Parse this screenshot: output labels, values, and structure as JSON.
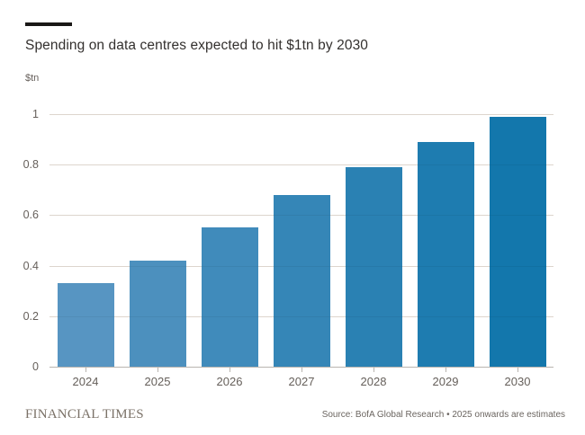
{
  "title": "Spending on data centres expected to hit $1tn by 2030",
  "unit_label": "$tn",
  "brand_bar_color": "#1A1817",
  "chart_data": {
    "type": "bar",
    "categories": [
      "2024",
      "2025",
      "2026",
      "2027",
      "2028",
      "2029",
      "2030"
    ],
    "values": [
      0.33,
      0.42,
      0.55,
      0.68,
      0.79,
      0.89,
      0.99
    ],
    "bar_colors": [
      "#5795C2",
      "#4C90BE",
      "#408BBB",
      "#3586B7",
      "#2A81B3",
      "#1E7CB0",
      "#1377AC"
    ],
    "title": "Spending on data centres expected to hit $1tn by 2030",
    "xlabel": "",
    "ylabel": "$tn",
    "ylim": [
      0,
      1.05
    ],
    "yticks": [
      0,
      0.2,
      0.4,
      0.6,
      0.8,
      1
    ],
    "ytick_labels": [
      "0",
      "0.2",
      "0.4",
      "0.6",
      "0.8",
      "1"
    ],
    "grid": "horizontal-only",
    "legend": "none",
    "gridline_color": "#EAE2D9",
    "axis_line_color": "#B9B5B0",
    "tick_color": "#B9B5B0",
    "tick_label_color": "#66605B"
  },
  "footer": {
    "brand": "FINANCIAL TIMES",
    "source": "Source: BofA Global Research • 2025 onwards are estimates"
  }
}
